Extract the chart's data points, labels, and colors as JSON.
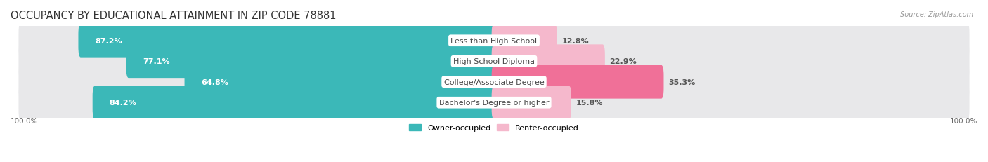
{
  "title": "OCCUPANCY BY EDUCATIONAL ATTAINMENT IN ZIP CODE 78881",
  "source": "Source: ZipAtlas.com",
  "categories": [
    "Less than High School",
    "High School Diploma",
    "College/Associate Degree",
    "Bachelor's Degree or higher"
  ],
  "owner_pct": [
    87.2,
    77.1,
    64.8,
    84.2
  ],
  "renter_pct": [
    12.8,
    22.9,
    35.3,
    15.8
  ],
  "owner_color": "#3bb8b8",
  "renter_color_low": "#f5b8cc",
  "renter_color_high": "#f07098",
  "bar_bg_color": "#e8e8ea",
  "bar_height": 0.62,
  "title_fontsize": 10.5,
  "label_fontsize": 8,
  "pct_fontsize": 8,
  "axis_label_fontsize": 7.5,
  "legend_fontsize": 8,
  "bg_color": "#ffffff",
  "x_left_label": "100.0%",
  "x_right_label": "100.0%",
  "total_width": 100.0,
  "renter_colors": [
    "#f5b8cc",
    "#f5b8cc",
    "#f07098",
    "#f5b8cc"
  ]
}
